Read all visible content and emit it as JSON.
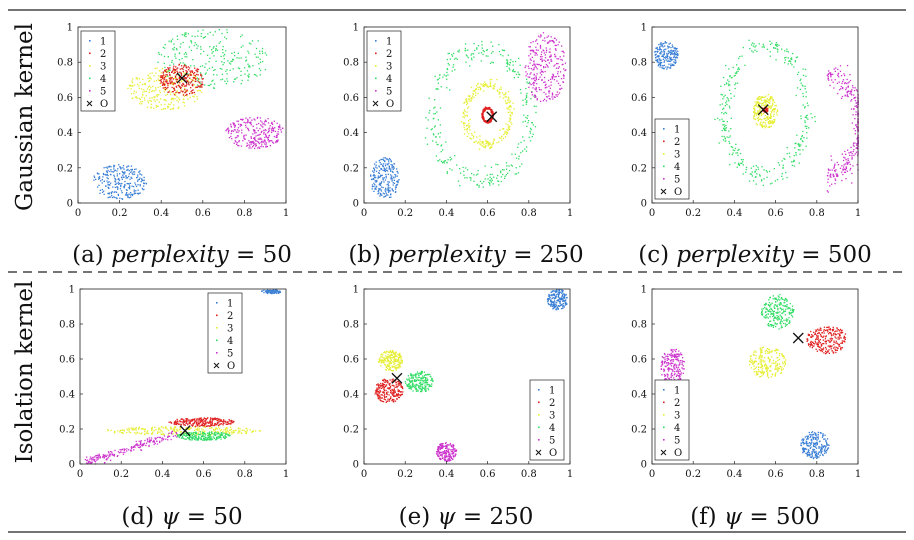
{
  "figure": {
    "row_labels": [
      "Gaussian kernel",
      "Isolation kernel"
    ]
  },
  "colors": {
    "1": "#3a7fd5",
    "2": "#e02020",
    "3": "#e6ee33",
    "4": "#33dd66",
    "5": "#cc33cc",
    "O": "#111111"
  },
  "chart_data": [
    {
      "type": "scatter",
      "caption": "(a) perplexity = 50",
      "caption_prefix": "(a) ",
      "caption_var": "perplexity",
      "caption_eq": " = 50",
      "xlim": [
        0,
        1
      ],
      "ylim": [
        0,
        1
      ],
      "xticks": [
        "0",
        "0.2",
        "0.4",
        "0.6",
        "0.8",
        "1"
      ],
      "yticks": [
        "0",
        "0.2",
        "0.4",
        "0.6",
        "0.8",
        "1"
      ],
      "legend": [
        "1",
        "2",
        "3",
        "4",
        "5",
        "O"
      ],
      "legend_position": "top-left",
      "clusters": [
        {
          "name": "1",
          "shape": "ellipse",
          "center": [
            0.2,
            0.12
          ],
          "radius": [
            0.13,
            0.1
          ],
          "n": 260
        },
        {
          "name": "3",
          "shape": "ellipse",
          "center": [
            0.42,
            0.65
          ],
          "radius": [
            0.18,
            0.12
          ],
          "n": 260
        },
        {
          "name": "4",
          "shape": "ellipse",
          "center": [
            0.65,
            0.82
          ],
          "radius": [
            0.27,
            0.17
          ],
          "n": 260
        },
        {
          "name": "2",
          "shape": "ellipse",
          "center": [
            0.5,
            0.7
          ],
          "radius": [
            0.11,
            0.09
          ],
          "n": 260
        },
        {
          "name": "5",
          "shape": "ellipse",
          "center": [
            0.85,
            0.4
          ],
          "radius": [
            0.14,
            0.09
          ],
          "n": 260
        }
      ],
      "outlier": [
        0.5,
        0.71
      ]
    },
    {
      "type": "scatter",
      "caption": "(b) perplexity = 250",
      "caption_prefix": "(b) ",
      "caption_var": "perplexity",
      "caption_eq": " = 250",
      "xlim": [
        0,
        1
      ],
      "ylim": [
        0,
        1
      ],
      "xticks": [
        "0",
        "0.2",
        "0.4",
        "0.6",
        "0.8",
        "1"
      ],
      "yticks": [
        "0",
        "0.2",
        "0.4",
        "0.6",
        "0.8",
        "1"
      ],
      "legend": [
        "1",
        "2",
        "3",
        "4",
        "5",
        "O"
      ],
      "legend_position": "top-left",
      "clusters": [
        {
          "name": "1",
          "shape": "ellipse",
          "center": [
            0.1,
            0.14
          ],
          "radius": [
            0.07,
            0.12
          ],
          "n": 220
        },
        {
          "name": "4",
          "shape": "ring",
          "center": [
            0.57,
            0.5
          ],
          "radius": [
            0.24,
            0.37
          ],
          "n": 320
        },
        {
          "name": "3",
          "shape": "ring",
          "center": [
            0.6,
            0.5
          ],
          "radius": [
            0.11,
            0.17
          ],
          "n": 260
        },
        {
          "name": "2",
          "shape": "ring",
          "center": [
            0.6,
            0.5
          ],
          "radius": [
            0.025,
            0.04
          ],
          "n": 200
        },
        {
          "name": "5",
          "shape": "ellipse",
          "center": [
            0.88,
            0.77
          ],
          "radius": [
            0.1,
            0.2
          ],
          "n": 280
        }
      ],
      "outlier": [
        0.62,
        0.49
      ]
    },
    {
      "type": "scatter",
      "caption": "(c) perplexity = 500",
      "caption_prefix": "(c) ",
      "caption_var": "perplexity",
      "caption_eq": " = 500",
      "xlim": [
        0,
        1
      ],
      "ylim": [
        0,
        1
      ],
      "xticks": [
        "0",
        "0.2",
        "0.4",
        "0.6",
        "0.8",
        "1"
      ],
      "yticks": [
        "0",
        "0.2",
        "0.4",
        "0.6",
        "0.8",
        "1"
      ],
      "legend": [
        "1",
        "2",
        "3",
        "4",
        "5",
        "O"
      ],
      "legend_position": "bottom-left",
      "clusters": [
        {
          "name": "1",
          "shape": "ellipse",
          "center": [
            0.07,
            0.84
          ],
          "radius": [
            0.06,
            0.08
          ],
          "n": 200
        },
        {
          "name": "4",
          "shape": "ring",
          "center": [
            0.55,
            0.52
          ],
          "radius": [
            0.2,
            0.37
          ],
          "n": 320
        },
        {
          "name": "3",
          "shape": "ellipse",
          "center": [
            0.55,
            0.52
          ],
          "radius": [
            0.06,
            0.1
          ],
          "n": 240
        },
        {
          "name": "2",
          "shape": "ellipse",
          "center": [
            0.55,
            0.53
          ],
          "radius": [
            0.015,
            0.015
          ],
          "n": 40
        },
        {
          "name": "5",
          "shape": "arc",
          "center": [
            0.8,
            0.44
          ],
          "radius": [
            0.18,
            0.28
          ],
          "n": 300
        }
      ],
      "outlier": [
        0.54,
        0.53
      ]
    },
    {
      "type": "scatter",
      "caption": "(d) ψ = 50",
      "caption_prefix": "(d) ",
      "caption_var": "ψ",
      "caption_eq": " = 50",
      "xlim": [
        0,
        1
      ],
      "ylim": [
        0,
        1
      ],
      "xticks": [
        "0",
        "0.2",
        "0.4",
        "0.6",
        "0.8",
        "1"
      ],
      "yticks": [
        "0",
        "0.2",
        "0.4",
        "0.6",
        "0.8",
        "1"
      ],
      "legend": [
        "1",
        "2",
        "3",
        "4",
        "5",
        "O"
      ],
      "legend_position": "top-center",
      "clusters": [
        {
          "name": "1",
          "shape": "ellipse",
          "center": [
            0.93,
            0.985
          ],
          "radius": [
            0.05,
            0.012
          ],
          "n": 80
        },
        {
          "name": "3",
          "shape": "ellipse",
          "center": [
            0.5,
            0.19
          ],
          "radius": [
            0.38,
            0.025
          ],
          "n": 260
        },
        {
          "name": "2",
          "shape": "ellipse",
          "center": [
            0.59,
            0.24
          ],
          "radius": [
            0.16,
            0.025
          ],
          "n": 240
        },
        {
          "name": "4",
          "shape": "ellipse",
          "center": [
            0.6,
            0.16
          ],
          "radius": [
            0.13,
            0.025
          ],
          "n": 220
        },
        {
          "name": "5",
          "shape": "line",
          "center": [
            0.25,
            0.09
          ],
          "radius": [
            0.22,
            0.1
          ],
          "n": 200
        }
      ],
      "outlier": [
        0.51,
        0.19
      ]
    },
    {
      "type": "scatter",
      "caption": "(e) ψ = 250",
      "caption_prefix": "(e) ",
      "caption_var": "ψ",
      "caption_eq": " = 250",
      "xlim": [
        0,
        1
      ],
      "ylim": [
        0,
        1
      ],
      "xticks": [
        "0",
        "0.2",
        "0.4",
        "0.6",
        "0.8",
        "1"
      ],
      "yticks": [
        "0",
        "0.2",
        "0.4",
        "0.6",
        "0.8",
        "1"
      ],
      "legend": [
        "1",
        "2",
        "3",
        "4",
        "5",
        "O"
      ],
      "legend_position": "bottom-right",
      "clusters": [
        {
          "name": "1",
          "shape": "ellipse",
          "center": [
            0.94,
            0.94
          ],
          "radius": [
            0.05,
            0.06
          ],
          "n": 180
        },
        {
          "name": "3",
          "shape": "ellipse",
          "center": [
            0.13,
            0.59
          ],
          "radius": [
            0.06,
            0.06
          ],
          "n": 200
        },
        {
          "name": "2",
          "shape": "ellipse",
          "center": [
            0.12,
            0.42
          ],
          "radius": [
            0.07,
            0.07
          ],
          "n": 220
        },
        {
          "name": "4",
          "shape": "ellipse",
          "center": [
            0.27,
            0.47
          ],
          "radius": [
            0.07,
            0.06
          ],
          "n": 200
        },
        {
          "name": "5",
          "shape": "ellipse",
          "center": [
            0.4,
            0.07
          ],
          "radius": [
            0.05,
            0.055
          ],
          "n": 180
        }
      ],
      "outlier": [
        0.16,
        0.49
      ]
    },
    {
      "type": "scatter",
      "caption": "(f) ψ = 500",
      "caption_prefix": "(f) ",
      "caption_var": "ψ",
      "caption_eq": " = 500",
      "xlim": [
        0,
        1
      ],
      "ylim": [
        0,
        1
      ],
      "xticks": [
        "0",
        "0.2",
        "0.4",
        "0.6",
        "0.8",
        "1"
      ],
      "yticks": [
        "0",
        "0.2",
        "0.4",
        "0.6",
        "0.8",
        "1"
      ],
      "legend": [
        "1",
        "2",
        "3",
        "4",
        "5",
        "O"
      ],
      "legend_position": "bottom-left",
      "clusters": [
        {
          "name": "1",
          "shape": "ellipse",
          "center": [
            0.79,
            0.11
          ],
          "radius": [
            0.07,
            0.08
          ],
          "n": 220
        },
        {
          "name": "5",
          "shape": "ellipse",
          "center": [
            0.1,
            0.56
          ],
          "radius": [
            0.06,
            0.1
          ],
          "n": 200
        },
        {
          "name": "3",
          "shape": "ellipse",
          "center": [
            0.56,
            0.58
          ],
          "radius": [
            0.09,
            0.09
          ],
          "n": 220
        },
        {
          "name": "4",
          "shape": "ellipse",
          "center": [
            0.61,
            0.87
          ],
          "radius": [
            0.08,
            0.1
          ],
          "n": 220
        },
        {
          "name": "2",
          "shape": "ellipse",
          "center": [
            0.85,
            0.71
          ],
          "radius": [
            0.1,
            0.08
          ],
          "n": 240
        }
      ],
      "outlier": [
        0.71,
        0.72
      ]
    }
  ]
}
